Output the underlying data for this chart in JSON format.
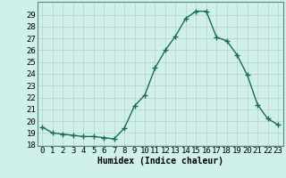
{
  "x": [
    0,
    1,
    2,
    3,
    4,
    5,
    6,
    7,
    8,
    9,
    10,
    11,
    12,
    13,
    14,
    15,
    16,
    17,
    18,
    19,
    20,
    21,
    22,
    23
  ],
  "y": [
    19.5,
    19.0,
    18.9,
    18.8,
    18.7,
    18.7,
    18.6,
    18.5,
    19.4,
    21.3,
    22.2,
    24.5,
    26.0,
    27.2,
    28.7,
    29.3,
    29.3,
    27.1,
    26.8,
    25.6,
    23.9,
    21.4,
    20.2,
    19.7
  ],
  "line_color": "#1a6b5a",
  "marker": "+",
  "marker_size": 4,
  "marker_lw": 1.0,
  "bg_color": "#cff0eb",
  "grid_major_color": "#b8d0cc",
  "grid_minor_color": "#daeae8",
  "xlabel": "Humidex (Indice chaleur)",
  "xlim": [
    -0.5,
    23.5
  ],
  "ylim": [
    17.9,
    30.1
  ],
  "yticks": [
    18,
    19,
    20,
    21,
    22,
    23,
    24,
    25,
    26,
    27,
    28,
    29
  ],
  "xticks": [
    0,
    1,
    2,
    3,
    4,
    5,
    6,
    7,
    8,
    9,
    10,
    11,
    12,
    13,
    14,
    15,
    16,
    17,
    18,
    19,
    20,
    21,
    22,
    23
  ],
  "xlabel_fontsize": 7,
  "tick_fontsize": 6.5,
  "linewidth": 1.0
}
